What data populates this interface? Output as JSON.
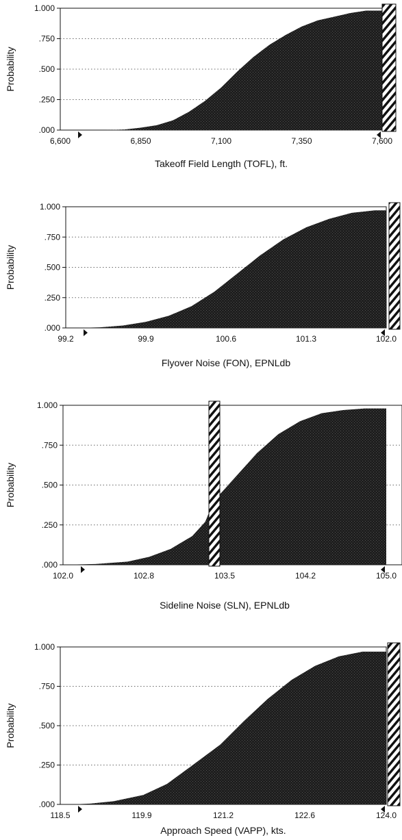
{
  "figure": {
    "panels": [
      {
        "id": "tofl",
        "xlabel": "Takeoff Field Length (TOFL), ft.",
        "ylabel": "Probability",
        "x_ticks": [
          "6,600",
          "6,850",
          "7,100",
          "7,350",
          "7,600"
        ],
        "y_ticks": [
          ".000",
          ".250",
          ".500",
          ".750",
          "1.000"
        ]
      },
      {
        "id": "fon",
        "xlabel": "Flyover Noise (FON), EPNLdb",
        "ylabel": "Probability",
        "x_ticks": [
          "99.2",
          "99.9",
          "100.6",
          "101.3",
          "102.0"
        ],
        "y_ticks": [
          ".000",
          ".250",
          ".500",
          ".750",
          "1.000"
        ]
      },
      {
        "id": "sln",
        "xlabel": "Sideline Noise (SLN), EPNLdb",
        "ylabel": "Probability",
        "x_ticks": [
          "102.0",
          "102.8",
          "103.5",
          "104.2",
          "105.0"
        ],
        "y_ticks": [
          ".000",
          ".250",
          ".500",
          ".750",
          "1.000"
        ]
      },
      {
        "id": "vapp",
        "xlabel": "Approach Speed (VAPP), kts.",
        "ylabel": "Probability",
        "x_ticks": [
          "118.5",
          "119.9",
          "121.2",
          "122.6",
          "124.0"
        ],
        "y_ticks": [
          ".000",
          ".250",
          ".500",
          ".750",
          "1.000"
        ]
      }
    ]
  },
  "colors": {
    "fill": "#1e1e1e",
    "axis": "#111111",
    "grid": "#666666",
    "background": "#ffffff"
  },
  "chart_data": [
    {
      "type": "area",
      "xlabel": "Takeoff Field Length (TOFL), ft.",
      "ylabel": "Probability",
      "xlim": [
        6600,
        7600
      ],
      "ylim": [
        0,
        1
      ],
      "grid": "dotted horizontal",
      "constraint_limit": 7600,
      "constraint_side": "right",
      "x": [
        6740,
        6800,
        6850,
        6900,
        6950,
        7000,
        7050,
        7100,
        7150,
        7200,
        7250,
        7300,
        7350,
        7400,
        7450,
        7500,
        7550,
        7600
      ],
      "y": [
        0.0,
        0.005,
        0.02,
        0.04,
        0.08,
        0.15,
        0.24,
        0.35,
        0.48,
        0.6,
        0.7,
        0.78,
        0.85,
        0.9,
        0.93,
        0.96,
        0.98,
        0.98
      ]
    },
    {
      "type": "area",
      "xlabel": "Flyover Noise (FON), EPNLdb",
      "ylabel": "Probability",
      "xlim": [
        99.2,
        102.0
      ],
      "ylim": [
        0,
        1
      ],
      "grid": "dotted horizontal",
      "constraint_limit": 102.0,
      "constraint_side": "right",
      "x": [
        99.3,
        99.5,
        99.7,
        99.9,
        100.1,
        100.3,
        100.5,
        100.7,
        100.9,
        101.1,
        101.3,
        101.5,
        101.7,
        101.9,
        102.0
      ],
      "y": [
        0.0,
        0.005,
        0.02,
        0.05,
        0.1,
        0.18,
        0.3,
        0.45,
        0.6,
        0.73,
        0.83,
        0.9,
        0.95,
        0.97,
        0.97
      ]
    },
    {
      "type": "area",
      "xlabel": "Sideline Noise (SLN), EPNLdb",
      "ylabel": "Probability",
      "xlim": [
        102.0,
        105.0
      ],
      "ylim": [
        0,
        1
      ],
      "grid": "dotted horizontal",
      "constraint_limit": 103.32,
      "constraint_side": "middle",
      "x": [
        102.0,
        102.3,
        102.6,
        102.8,
        103.0,
        103.2,
        103.32,
        103.4,
        103.6,
        103.8,
        104.0,
        104.2,
        104.4,
        104.6,
        104.8,
        105.0
      ],
      "y": [
        0.0,
        0.005,
        0.02,
        0.05,
        0.1,
        0.18,
        0.27,
        0.4,
        0.55,
        0.7,
        0.82,
        0.9,
        0.95,
        0.97,
        0.98,
        0.98
      ]
    },
    {
      "type": "area",
      "xlabel": "Approach Speed (VAPP), kts.",
      "ylabel": "Probability",
      "xlim": [
        118.5,
        124.0
      ],
      "ylim": [
        0,
        1
      ],
      "grid": "dotted horizontal",
      "constraint_limit": 124.0,
      "constraint_side": "right",
      "x": [
        118.7,
        119.0,
        119.4,
        119.9,
        120.3,
        120.7,
        121.2,
        121.6,
        122.0,
        122.4,
        122.8,
        123.2,
        123.6,
        124.0
      ],
      "y": [
        0.0,
        0.005,
        0.02,
        0.06,
        0.13,
        0.24,
        0.38,
        0.53,
        0.67,
        0.79,
        0.88,
        0.94,
        0.97,
        0.97
      ]
    }
  ]
}
